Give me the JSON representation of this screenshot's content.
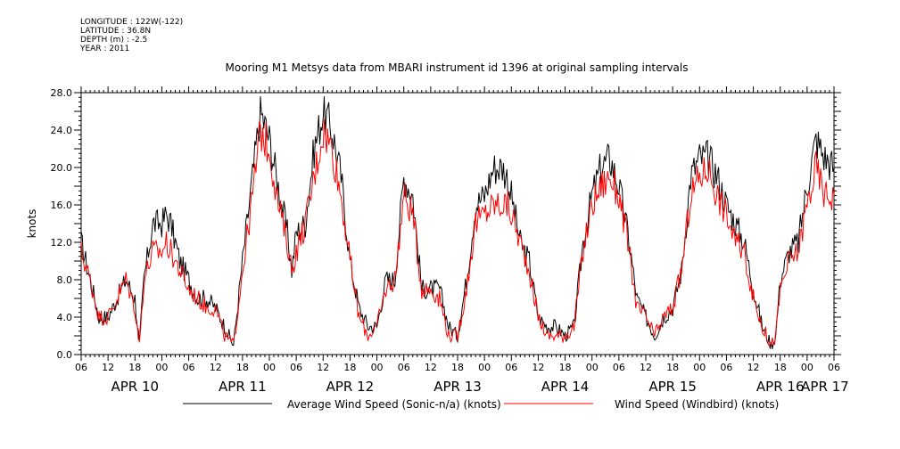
{
  "metadata": {
    "longitude": "LONGITUDE : 122W(-122)",
    "latitude": "LATITUDE : 36.8N",
    "depth": "DEPTH (m) : -2.5",
    "year": "YEAR : 2011"
  },
  "chart_data": {
    "type": "line",
    "title": "Mooring M1 Metsys data from MBARI instrument id 1396 at original sampling intervals",
    "ylabel": "knots",
    "xlabel": "",
    "ylim": [
      0,
      28
    ],
    "yticks": [
      0,
      4,
      8,
      12,
      16,
      20,
      24,
      28
    ],
    "ytick_labels": [
      "0.0",
      "4.0",
      "8.0",
      "12.0",
      "16.0",
      "20.0",
      "24.0",
      "28.0"
    ],
    "xlim_hours": [
      0,
      168
    ],
    "x_start": "APR 10 06",
    "hour_ticks": [
      "06",
      "12",
      "18",
      "00",
      "06",
      "12",
      "18",
      "00",
      "06",
      "12",
      "18",
      "00",
      "06",
      "12",
      "18",
      "00",
      "06",
      "12",
      "18",
      "00",
      "06",
      "12",
      "18",
      "00",
      "06",
      "12",
      "18",
      "00",
      "06"
    ],
    "date_labels": [
      {
        "label": "APR 10",
        "hour": 12
      },
      {
        "label": "APR 11",
        "hour": 36
      },
      {
        "label": "APR 12",
        "hour": 60
      },
      {
        "label": "APR 13",
        "hour": 84
      },
      {
        "label": "APR 14",
        "hour": 108
      },
      {
        "label": "APR 15",
        "hour": 132
      },
      {
        "label": "APR 16",
        "hour": 156
      },
      {
        "label": "APR 17",
        "hour": 166
      }
    ],
    "grid": false,
    "legend_position": "bottom",
    "series": [
      {
        "name": "Average Wind Speed (Sonic-n/a) (knots)",
        "color": "#000000",
        "x": [
          0,
          2,
          4,
          6,
          8,
          10,
          12,
          13,
          14,
          16,
          18,
          19,
          20,
          22,
          24,
          26,
          28,
          30,
          32,
          34,
          36,
          38,
          40,
          42,
          44,
          46,
          47,
          48,
          50,
          52,
          54,
          56,
          58,
          60,
          62,
          64,
          66,
          68,
          70,
          72,
          74,
          76,
          78,
          80,
          82,
          84,
          86,
          88,
          90,
          92,
          94,
          95,
          96,
          98,
          100,
          102,
          104,
          106,
          108,
          110,
          112,
          114,
          116,
          118,
          120,
          122,
          124,
          126,
          127,
          128,
          130,
          132,
          134,
          136,
          138,
          140,
          142,
          144,
          146,
          148,
          150,
          152,
          154,
          155,
          156,
          158,
          160,
          162,
          164,
          166,
          168
        ],
        "y": [
          12,
          8,
          4,
          4,
          6,
          8,
          6,
          1,
          8,
          14,
          14,
          15,
          14,
          10,
          8,
          6,
          6,
          5,
          3,
          1,
          10,
          18,
          26,
          23,
          18,
          13,
          9,
          13,
          14,
          22,
          26,
          24,
          19,
          10,
          5,
          3,
          3,
          8,
          8,
          19,
          17,
          7,
          7,
          7,
          3,
          2,
          8,
          16,
          17,
          20,
          20,
          19,
          17,
          12,
          10,
          4,
          3,
          3,
          2,
          3,
          12,
          17,
          20,
          21,
          18,
          13,
          6,
          4,
          3,
          2,
          4,
          5,
          9,
          19,
          21,
          21,
          19,
          16,
          14,
          12,
          7,
          3,
          1,
          2,
          8,
          11,
          12,
          18,
          23,
          21,
          20
        ]
      },
      {
        "name": "Wind Speed (Windbird) (knots)",
        "color": "#ff0000",
        "x": [
          0,
          2,
          4,
          6,
          8,
          10,
          12,
          13,
          14,
          16,
          18,
          19,
          20,
          22,
          24,
          26,
          28,
          30,
          32,
          34,
          36,
          38,
          40,
          42,
          44,
          46,
          47,
          48,
          50,
          52,
          54,
          56,
          58,
          60,
          62,
          64,
          66,
          68,
          70,
          72,
          74,
          76,
          78,
          80,
          82,
          84,
          86,
          88,
          90,
          92,
          94,
          95,
          96,
          98,
          100,
          102,
          104,
          106,
          108,
          110,
          112,
          114,
          116,
          118,
          120,
          122,
          124,
          126,
          127,
          128,
          130,
          132,
          134,
          136,
          138,
          140,
          142,
          144,
          146,
          148,
          150,
          152,
          154,
          155,
          156,
          158,
          160,
          162,
          164,
          166,
          168
        ],
        "y": [
          11,
          8,
          4,
          4,
          6,
          8,
          5,
          1,
          8,
          11,
          11,
          12,
          11,
          9,
          7,
          6,
          5,
          5,
          2,
          1,
          9,
          16,
          24,
          22,
          16,
          12,
          9,
          11,
          14,
          19,
          24,
          22,
          17,
          10,
          4,
          2,
          3,
          7,
          8,
          17,
          15,
          7,
          7,
          6,
          2,
          2,
          7,
          14,
          15,
          16,
          16,
          16,
          15,
          12,
          9,
          4,
          2,
          2,
          2,
          3,
          11,
          16,
          18,
          19,
          17,
          12,
          5,
          4,
          3,
          2,
          4,
          5,
          9,
          17,
          19,
          20,
          17,
          15,
          12,
          11,
          6,
          3,
          1,
          2,
          7,
          10,
          11,
          16,
          20,
          17,
          17
        ]
      }
    ]
  }
}
